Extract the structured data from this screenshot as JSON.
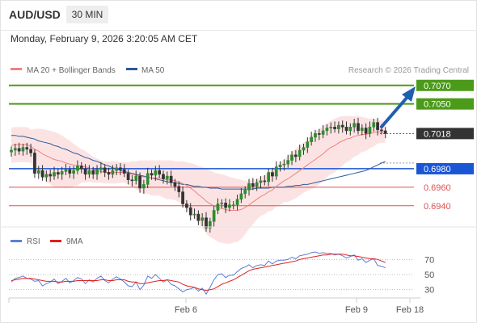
{
  "header": {
    "symbol": "AUD/USD",
    "timeframe": "30 MIN",
    "datetime": "Monday, February 9, 2026 3:20:05 AM CET"
  },
  "legend": {
    "ma20_label": "MA 20 + Bollinger Bands",
    "ma50_label": "MA 50",
    "ma20_color": "#f08080",
    "ma50_color": "#2a5a9a",
    "copyright": "Research © 2026 Trading Central"
  },
  "rsi_legend": {
    "rsi_label": "RSI",
    "ma_label": "9MA",
    "rsi_color": "#5b7fd6",
    "ma_color": "#e02020"
  },
  "chart_data": {
    "type": "candlestick",
    "x_ticks": [
      "Feb 6",
      "Feb 9",
      "Feb 18"
    ],
    "ylim": [
      0.6918,
      0.7082
    ],
    "levels": [
      {
        "value": 0.707,
        "label": "0.7070",
        "color": "#4c9a1a",
        "kind": "resistance"
      },
      {
        "value": 0.705,
        "label": "0.7050",
        "color": "#4c9a1a",
        "kind": "resistance"
      },
      {
        "value": 0.7018,
        "label": "0.7018",
        "color": "#333333",
        "kind": "last"
      },
      {
        "value": 0.698,
        "label": "0.6980",
        "color": "#1a55d6",
        "kind": "pivot"
      },
      {
        "value": 0.696,
        "label": "0.6960",
        "color": "#e05050",
        "kind": "support"
      },
      {
        "value": 0.694,
        "label": "0.6940",
        "color": "#e05050",
        "kind": "support"
      }
    ],
    "closes": [
      0.7,
      0.7002,
      0.6999,
      0.7003,
      0.7001,
      0.6997,
      0.6975,
      0.6978,
      0.6971,
      0.6974,
      0.6972,
      0.6976,
      0.6974,
      0.6977,
      0.6979,
      0.6975,
      0.6978,
      0.6983,
      0.698,
      0.6974,
      0.6978,
      0.6974,
      0.6979,
      0.6981,
      0.6976,
      0.6974,
      0.6978,
      0.6981,
      0.6979,
      0.6975,
      0.6968,
      0.6967,
      0.6972,
      0.6959,
      0.6963,
      0.6975,
      0.6973,
      0.6978,
      0.6974,
      0.6969,
      0.6972,
      0.6965,
      0.6961,
      0.6955,
      0.6942,
      0.6938,
      0.693,
      0.6931,
      0.6924,
      0.6927,
      0.6916,
      0.6923,
      0.6935,
      0.6942,
      0.6943,
      0.6938,
      0.6941,
      0.6941,
      0.6947,
      0.6953,
      0.6957,
      0.6964,
      0.6961,
      0.6965,
      0.6967,
      0.6966,
      0.6976,
      0.6972,
      0.6982,
      0.6984,
      0.6985,
      0.6989,
      0.6995,
      0.6993,
      0.7,
      0.7003,
      0.7009,
      0.7014,
      0.7018,
      0.7017,
      0.7021,
      0.7024,
      0.7025,
      0.7023,
      0.7027,
      0.7025,
      0.7021,
      0.7025,
      0.7029,
      0.7021,
      0.7024,
      0.7018,
      0.7025,
      0.703,
      0.7022,
      0.7021,
      0.7018
    ],
    "ma20": [
      0.7005,
      0.7006,
      0.7006,
      0.7006,
      0.7006,
      0.7004,
      0.7001,
      0.6999,
      0.6996,
      0.6994,
      0.6992,
      0.699,
      0.6989,
      0.6988,
      0.6986,
      0.6985,
      0.6984,
      0.6983,
      0.6983,
      0.6982,
      0.6981,
      0.6979,
      0.6978,
      0.6977,
      0.6976,
      0.6976,
      0.6976,
      0.6976,
      0.6976,
      0.6976,
      0.6975,
      0.6974,
      0.6973,
      0.6972,
      0.6971,
      0.6971,
      0.697,
      0.697,
      0.697,
      0.6969,
      0.6968,
      0.6968,
      0.6967,
      0.6966,
      0.6964,
      0.6962,
      0.6959,
      0.6956,
      0.6952,
      0.6949,
      0.6945,
      0.6942,
      0.694,
      0.6938,
      0.6937,
      0.6936,
      0.6935,
      0.6935,
      0.6935,
      0.6936,
      0.6938,
      0.6941,
      0.6944,
      0.6947,
      0.695,
      0.6952,
      0.6955,
      0.6957,
      0.6961,
      0.6964,
      0.6967,
      0.6969,
      0.6972,
      0.6975,
      0.6978,
      0.6981,
      0.6984,
      0.6987,
      0.699,
      0.6993,
      0.6996,
      0.7,
      0.7003,
      0.7005,
      0.7008,
      0.701,
      0.7012,
      0.7013,
      0.7015,
      0.7016,
      0.7017,
      0.7017,
      0.7018,
      0.7019,
      0.702,
      0.702,
      0.702
    ],
    "bb_upper": [
      0.7024,
      0.7025,
      0.7025,
      0.7025,
      0.7025,
      0.7022,
      0.7023,
      0.7023,
      0.7023,
      0.7022,
      0.7021,
      0.702,
      0.7018,
      0.7016,
      0.7013,
      0.701,
      0.7007,
      0.7004,
      0.7001,
      0.6999,
      0.6996,
      0.6993,
      0.6991,
      0.6989,
      0.6988,
      0.6988,
      0.6988,
      0.6988,
      0.6987,
      0.6987,
      0.6987,
      0.6988,
      0.6988,
      0.6989,
      0.6989,
      0.6989,
      0.6989,
      0.6989,
      0.6989,
      0.6989,
      0.6989,
      0.6989,
      0.6988,
      0.6988,
      0.6988,
      0.6987,
      0.6986,
      0.6985,
      0.6983,
      0.6982,
      0.698,
      0.6978,
      0.6976,
      0.6975,
      0.6974,
      0.6973,
      0.6971,
      0.697,
      0.6969,
      0.6968,
      0.6967,
      0.6967,
      0.6968,
      0.6969,
      0.6971,
      0.6973,
      0.6976,
      0.6979,
      0.6983,
      0.6987,
      0.699,
      0.6994,
      0.6998,
      0.7002,
      0.7005,
      0.7008,
      0.7012,
      0.7016,
      0.702,
      0.7023,
      0.7026,
      0.7029,
      0.7032,
      0.7034,
      0.7036,
      0.7037,
      0.7037,
      0.7037,
      0.7037,
      0.7037,
      0.7036,
      0.7035,
      0.7034,
      0.7034,
      0.7033,
      0.7032,
      0.7032
    ],
    "bb_lower": [
      0.6986,
      0.6987,
      0.6987,
      0.6987,
      0.6987,
      0.6986,
      0.6979,
      0.6975,
      0.697,
      0.6966,
      0.6963,
      0.696,
      0.696,
      0.696,
      0.6959,
      0.696,
      0.6961,
      0.6962,
      0.6965,
      0.6965,
      0.6966,
      0.6965,
      0.6965,
      0.6965,
      0.6964,
      0.6964,
      0.6964,
      0.6964,
      0.6965,
      0.6965,
      0.6963,
      0.696,
      0.6958,
      0.6955,
      0.6953,
      0.6953,
      0.6951,
      0.6951,
      0.6951,
      0.6949,
      0.6947,
      0.6947,
      0.6946,
      0.6944,
      0.694,
      0.6937,
      0.6932,
      0.6927,
      0.6921,
      0.6916,
      0.691,
      0.6906,
      0.6904,
      0.6901,
      0.69,
      0.6899,
      0.6899,
      0.69,
      0.6901,
      0.6904,
      0.6909,
      0.6915,
      0.692,
      0.6925,
      0.6929,
      0.6931,
      0.6934,
      0.6935,
      0.6939,
      0.6941,
      0.6944,
      0.6944,
      0.6946,
      0.6948,
      0.6951,
      0.6954,
      0.6956,
      0.6958,
      0.696,
      0.6963,
      0.6966,
      0.6971,
      0.6974,
      0.6976,
      0.698,
      0.6983,
      0.6987,
      0.6989,
      0.6993,
      0.6995,
      0.6998,
      0.6999,
      0.7002,
      0.7004,
      0.7007,
      0.7008,
      0.7008
    ],
    "ma50": [
      0.7016,
      0.7016,
      0.7015,
      0.7015,
      0.7014,
      0.7013,
      0.7012,
      0.701,
      0.7009,
      0.7008,
      0.7007,
      0.7005,
      0.7004,
      0.7002,
      0.7001,
      0.6999,
      0.6997,
      0.6996,
      0.6994,
      0.6992,
      0.6991,
      0.6989,
      0.6988,
      0.6986,
      0.6984,
      0.6983,
      0.6981,
      0.698,
      0.6978,
      0.6977,
      0.6976,
      0.6975,
      0.6974,
      0.6973,
      0.6972,
      0.6971,
      0.697,
      0.6969,
      0.6968,
      0.6967,
      0.6966,
      0.6965,
      0.6965,
      0.6964,
      0.6963,
      0.6963,
      0.6962,
      0.6961,
      0.6961,
      0.696,
      0.696,
      0.6959,
      0.6959,
      0.6959,
      0.6958,
      0.6958,
      0.6958,
      0.6958,
      0.6958,
      0.6958,
      0.6958,
      0.6958,
      0.6958,
      0.6959,
      0.6959,
      0.6959,
      0.6959,
      0.696,
      0.696,
      0.696,
      0.696,
      0.6961,
      0.6961,
      0.6962,
      0.6962,
      0.6963,
      0.6963,
      0.6964,
      0.6965,
      0.6966,
      0.6967,
      0.6968,
      0.6969,
      0.697,
      0.6971,
      0.6972,
      0.6973,
      0.6974,
      0.6975,
      0.6976,
      0.6977,
      0.6978,
      0.698,
      0.6982,
      0.6984,
      0.6986,
      0.6988
    ],
    "rsi": {
      "ticks": [
        70,
        50,
        30
      ],
      "ylim": [
        20,
        80
      ],
      "rsi_values": [
        40,
        45,
        46,
        48,
        45,
        44,
        41,
        42,
        35,
        38,
        40,
        44,
        38,
        41,
        45,
        39,
        42,
        46,
        44,
        38,
        43,
        40,
        45,
        48,
        42,
        39,
        44,
        47,
        44,
        40,
        35,
        34,
        40,
        30,
        36,
        48,
        45,
        50,
        45,
        40,
        43,
        37,
        35,
        31,
        27,
        30,
        31,
        33,
        28,
        32,
        24,
        33,
        43,
        50,
        51,
        46,
        49,
        49,
        54,
        58,
        60,
        63,
        59,
        62,
        63,
        62,
        68,
        64,
        68,
        69,
        69,
        70,
        73,
        71,
        75,
        76,
        77,
        79,
        80,
        78,
        79,
        78,
        78,
        76,
        77,
        75,
        72,
        74,
        76,
        69,
        71,
        66,
        69,
        71,
        62,
        61,
        59
      ],
      "ma_values": [
        42,
        43,
        44,
        45,
        45,
        45,
        44,
        43,
        42,
        41,
        41,
        41,
        40,
        40,
        41,
        41,
        41,
        42,
        42,
        42,
        42,
        42,
        42,
        43,
        43,
        42,
        42,
        43,
        43,
        43,
        41,
        40,
        40,
        38,
        38,
        39,
        40,
        41,
        42,
        42,
        43,
        42,
        41,
        40,
        37,
        35,
        34,
        33,
        31,
        30,
        29,
        30,
        31,
        34,
        37,
        39,
        41,
        43,
        46,
        49,
        52,
        55,
        57,
        58,
        59,
        60,
        61,
        62,
        63,
        64,
        65,
        66,
        67,
        68,
        70,
        71,
        72,
        73,
        74,
        75,
        76,
        76,
        77,
        77,
        77,
        77,
        76,
        75,
        75,
        74,
        73,
        72,
        71,
        71,
        70,
        68,
        66
      ]
    }
  }
}
